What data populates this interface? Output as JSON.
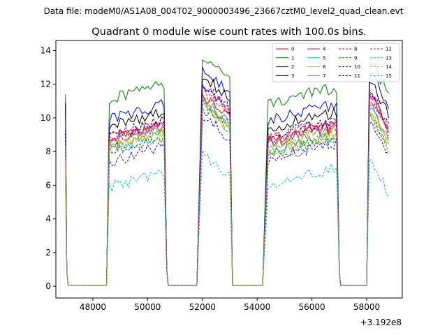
{
  "suptitle": "Data file: modeM0/AS1A08_004T02_9000003496_23667cztM0_level2_quad_clean.evt",
  "offset_text": "+3.192e8",
  "chart_data": {
    "type": "line",
    "title": "Quadrant 0 module wise count rates with 100.0s bins.",
    "xlabel": "",
    "ylabel": "",
    "x_offset": 319200000,
    "xlim": [
      46650,
      59300
    ],
    "ylim": [
      -0.7,
      14.6
    ],
    "xticks": [
      48000,
      50000,
      52000,
      54000,
      56000,
      58000
    ],
    "xtick_labels": [
      "48000",
      "50000",
      "52000",
      "54000",
      "56000",
      "58000"
    ],
    "yticks": [
      0,
      2,
      4,
      6,
      8,
      10,
      12,
      14
    ],
    "ytick_labels": [
      "0",
      "2",
      "4",
      "6",
      "8",
      "10",
      "12",
      "14"
    ],
    "legend_location": "upper-right",
    "legend_columns": 4,
    "segments": [
      {
        "start": 47000,
        "end": 50600
      },
      {
        "start": 51900,
        "end": 53000
      },
      {
        "start": 54300,
        "end": 56900
      },
      {
        "start": 58100,
        "end": 58800
      }
    ],
    "zero_gaps": [
      {
        "start": 47100,
        "end": 48500
      },
      {
        "start": 50700,
        "end": 51800
      },
      {
        "start": 53100,
        "end": 54200
      },
      {
        "start": 57000,
        "end": 58000
      }
    ],
    "series": [
      {
        "name": "0",
        "color": "#ff0000",
        "dashed": false,
        "levels": [
          9.0,
          8.6,
          11.4,
          8.6,
          11.5
        ]
      },
      {
        "name": "1",
        "color": "#008000",
        "dashed": false,
        "levels": [
          11.4,
          11.1,
          13.7,
          10.9,
          13.6
        ]
      },
      {
        "name": "2",
        "color": "#0000ff",
        "dashed": false,
        "levels": [
          10.7,
          9.9,
          12.9,
          9.9,
          12.8
        ]
      },
      {
        "name": "3",
        "color": "#000000",
        "dashed": false,
        "levels": [
          10.9,
          9.5,
          12.5,
          9.4,
          12.4
        ]
      },
      {
        "name": "4",
        "color": "#bf00bf",
        "dashed": false,
        "levels": [
          9.6,
          8.8,
          11.8,
          8.7,
          11.7
        ]
      },
      {
        "name": "5",
        "color": "#00bfbf",
        "dashed": false,
        "levels": [
          8.5,
          8.1,
          10.9,
          8.0,
          10.8
        ]
      },
      {
        "name": "6",
        "color": "#bfbf00",
        "dashed": false,
        "levels": [
          8.4,
          8.2,
          10.8,
          8.1,
          10.6
        ]
      },
      {
        "name": "7",
        "color": "#808080",
        "dashed": false,
        "levels": [
          8.8,
          8.5,
          11.1,
          8.4,
          10.9
        ]
      },
      {
        "name": "8",
        "color": "#ff0000",
        "dashed": true,
        "levels": [
          9.1,
          8.9,
          11.6,
          8.8,
          11.2
        ]
      },
      {
        "name": "9",
        "color": "#008000",
        "dashed": true,
        "levels": [
          8.6,
          7.9,
          10.6,
          7.8,
          10.5
        ]
      },
      {
        "name": "10",
        "color": "#0000ff",
        "dashed": true,
        "levels": [
          8.0,
          7.4,
          10.2,
          7.6,
          9.9
        ]
      },
      {
        "name": "11",
        "color": "#000000",
        "dashed": true,
        "levels": [
          9.3,
          8.9,
          11.9,
          8.9,
          11.8
        ]
      },
      {
        "name": "12",
        "color": "#bf00bf",
        "dashed": true,
        "levels": [
          9.6,
          8.7,
          11.8,
          8.9,
          11.5
        ]
      },
      {
        "name": "13",
        "color": "#00bfbf",
        "dashed": true,
        "levels": [
          6.0,
          5.9,
          7.9,
          6.1,
          7.7
        ]
      },
      {
        "name": "14",
        "color": "#bfbf00",
        "dashed": true,
        "levels": [
          8.3,
          8.3,
          10.8,
          8.3,
          10.5
        ]
      },
      {
        "name": "15",
        "color": "#808080",
        "dashed": true,
        "levels": [
          8.8,
          8.0,
          10.9,
          8.0,
          10.4
        ]
      }
    ]
  }
}
